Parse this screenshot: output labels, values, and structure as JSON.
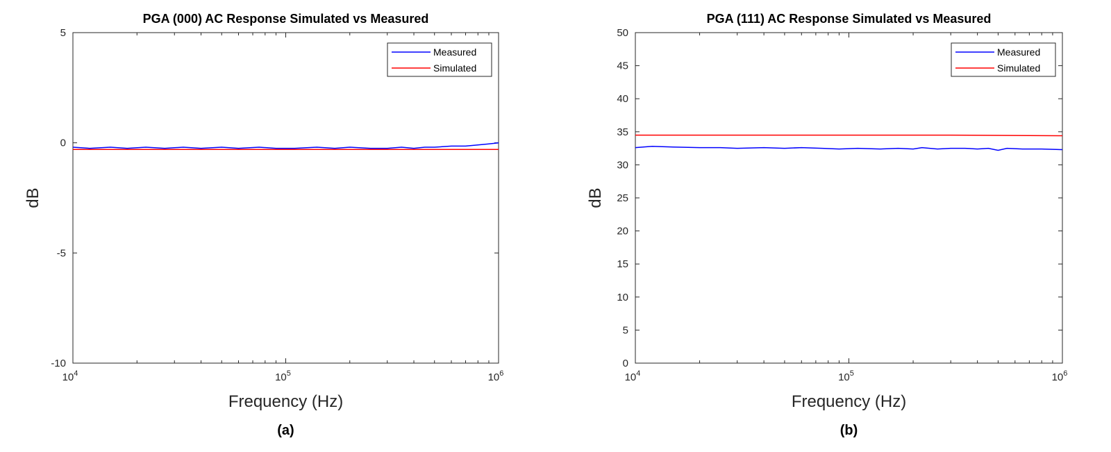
{
  "chart_data": [
    {
      "type": "line",
      "title": "PGA (000) AC Response Simulated vs Measured",
      "xlabel": "Frequency (Hz)",
      "ylabel": "dB",
      "xscale": "log",
      "xlim": [
        10000,
        1000000
      ],
      "ylim": [
        -10,
        5
      ],
      "xticks": [
        {
          "base": "10",
          "exp": "4"
        },
        {
          "base": "10",
          "exp": "5"
        },
        {
          "base": "10",
          "exp": "6"
        }
      ],
      "yticks": [
        "5",
        "0",
        "-5",
        "-10"
      ],
      "legend": {
        "position": "top-right",
        "entries": [
          "Measured",
          "Simulated"
        ]
      },
      "grid": false,
      "panel_label": "(a)",
      "series": [
        {
          "name": "Measured",
          "color": "#0000ff",
          "x": [
            10000,
            12000,
            15000,
            18000,
            22000,
            27000,
            33000,
            40000,
            50000,
            60000,
            75000,
            90000,
            110000,
            140000,
            170000,
            200000,
            250000,
            300000,
            350000,
            400000,
            450000,
            500000,
            600000,
            700000,
            800000,
            900000,
            1000000
          ],
          "y": [
            -0.2,
            -0.25,
            -0.2,
            -0.25,
            -0.2,
            -0.25,
            -0.2,
            -0.25,
            -0.2,
            -0.25,
            -0.2,
            -0.25,
            -0.25,
            -0.2,
            -0.25,
            -0.2,
            -0.25,
            -0.25,
            -0.2,
            -0.25,
            -0.2,
            -0.2,
            -0.15,
            -0.15,
            -0.1,
            -0.05,
            0.0
          ]
        },
        {
          "name": "Simulated",
          "color": "#ff0000",
          "x": [
            10000,
            100000,
            1000000
          ],
          "y": [
            -0.3,
            -0.3,
            -0.3
          ]
        }
      ]
    },
    {
      "type": "line",
      "title": "PGA (111) AC Response Simulated vs Measured",
      "xlabel": "Frequency (Hz)",
      "ylabel": "dB",
      "xscale": "log",
      "xlim": [
        10000,
        1000000
      ],
      "ylim": [
        0,
        50
      ],
      "xticks": [
        {
          "base": "10",
          "exp": "4"
        },
        {
          "base": "10",
          "exp": "5"
        },
        {
          "base": "10",
          "exp": "6"
        }
      ],
      "yticks": [
        "50",
        "45",
        "40",
        "35",
        "30",
        "25",
        "20",
        "15",
        "10",
        "5",
        "0"
      ],
      "legend": {
        "position": "top-right",
        "entries": [
          "Measured",
          "Simulated"
        ]
      },
      "grid": false,
      "panel_label": "(b)",
      "series": [
        {
          "name": "Measured",
          "color": "#0000ff",
          "x": [
            10000,
            12000,
            15000,
            20000,
            25000,
            30000,
            40000,
            50000,
            60000,
            75000,
            90000,
            110000,
            140000,
            170000,
            200000,
            220000,
            260000,
            300000,
            350000,
            400000,
            450000,
            500000,
            550000,
            650000,
            800000,
            1000000
          ],
          "y": [
            32.6,
            32.8,
            32.7,
            32.6,
            32.6,
            32.5,
            32.6,
            32.5,
            32.6,
            32.5,
            32.4,
            32.5,
            32.4,
            32.5,
            32.4,
            32.6,
            32.4,
            32.5,
            32.5,
            32.4,
            32.5,
            32.2,
            32.5,
            32.4,
            32.4,
            32.3
          ]
        },
        {
          "name": "Simulated",
          "color": "#ff0000",
          "x": [
            10000,
            100000,
            300000,
            1000000
          ],
          "y": [
            34.5,
            34.5,
            34.5,
            34.4
          ]
        }
      ]
    }
  ]
}
